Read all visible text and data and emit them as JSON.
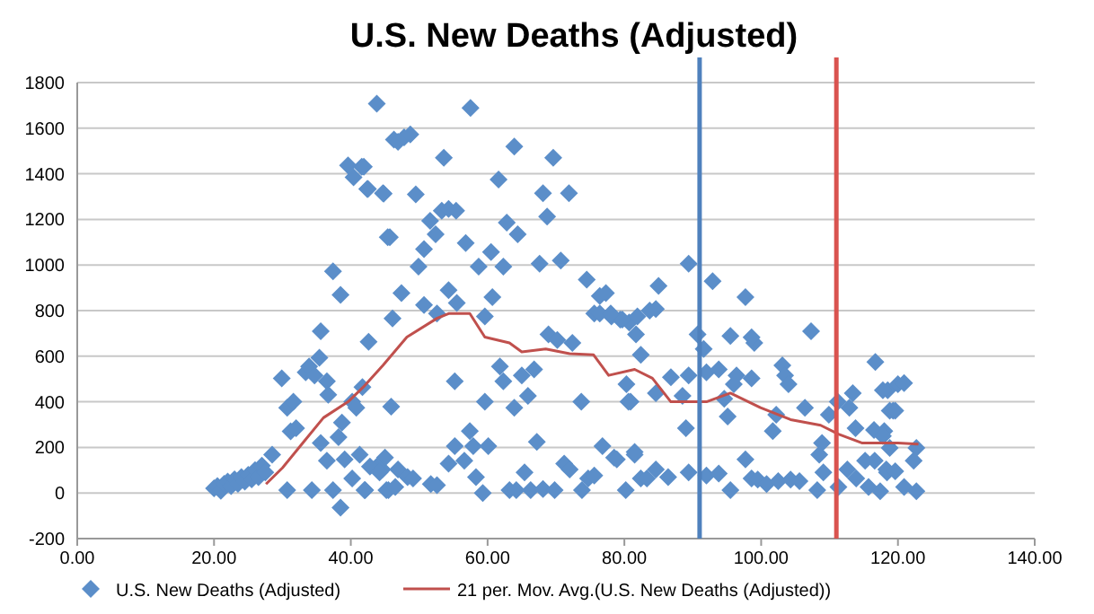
{
  "chart_data": {
    "type": "scatter",
    "title": "U.S. New Deaths (Adjusted)",
    "xlim": [
      0,
      140
    ],
    "ylim": [
      -200,
      1800
    ],
    "xticks": [
      {
        "value": 0,
        "label": "0.00"
      },
      {
        "value": 20,
        "label": "20.00"
      },
      {
        "value": 40,
        "label": "40.00"
      },
      {
        "value": 60,
        "label": "60.00"
      },
      {
        "value": 80,
        "label": "80.00"
      },
      {
        "value": 100,
        "label": "100.00"
      },
      {
        "value": 120,
        "label": "120.00"
      },
      {
        "value": 140,
        "label": "140.00"
      }
    ],
    "yticks": [
      -200,
      0,
      200,
      400,
      600,
      800,
      1000,
      1200,
      1400,
      1600,
      1800
    ],
    "grid": "y",
    "legend": "bottom",
    "series": [
      {
        "name": "U.S. New Deaths (Adjusted)",
        "marker": "diamond",
        "color": "#5b8ec9",
        "x": [
          20.0,
          20.5,
          21,
          21.5,
          22,
          22.5,
          23,
          23.5,
          24,
          24.5,
          25,
          25.5,
          26,
          26.5,
          27,
          27.5,
          28.5,
          29.9,
          30.7,
          31.6,
          31.2,
          32,
          33.4,
          33.9,
          34.7,
          35.4,
          35.6,
          36.5,
          36.7,
          37.4,
          38.5,
          38.5,
          37.4,
          34.3,
          30.7,
          36.5,
          35.6,
          38.2,
          38.7,
          39.1,
          39.6,
          40.4,
          41.6,
          42.4,
          40.2,
          40.8,
          41.7,
          42.6,
          42.1,
          41.3,
          40.2,
          43.8,
          44.8,
          45.7,
          46.3,
          46.1,
          45.9,
          45,
          44.6,
          43.8,
          45.5,
          41.9,
          42.5,
          44.7,
          46.9,
          47.8,
          48.7,
          53.6,
          49.5,
          45.4,
          51.6,
          50.7,
          52.4,
          53.3,
          54.3,
          55.4,
          56.8,
          57.5,
          49.9,
          47.4,
          50.7,
          52.6,
          54.3,
          55.5,
          55.2,
          57.4,
          58.7,
          59.6,
          60.5,
          60.7,
          62.3,
          62.8,
          61.6,
          63.9,
          64.4,
          61.8,
          62.3,
          59.6,
          63.9,
          65,
          65.9,
          66.8,
          67.6,
          68.1,
          68.7,
          69.6,
          71.9,
          70.7,
          68.9,
          70.2,
          72.4,
          73.7,
          74.5,
          76.4,
          77.3,
          75.6,
          76.4,
          78.1,
          79.4,
          80.7,
          81.7,
          82.4,
          80.3,
          80.9,
          76.8,
          78.5,
          81.5,
          82.4,
          42,
          42.8,
          44.2,
          45.2,
          46.5,
          46.9,
          48.3,
          49.1,
          51.7,
          52.6,
          54.3,
          55.2,
          56.6,
          57.9,
          58.3,
          59.3,
          60.1,
          63.2,
          64.2,
          65.4,
          66.3,
          67.2,
          68.1,
          69.8,
          71.2,
          72,
          73.8,
          74.7,
          75.6,
          89.4,
          92.9,
          97.7,
          85,
          83.7,
          84.6,
          81.9,
          79.7,
          78,
          90.7,
          91.6,
          95.5,
          99,
          98.6,
          107.3,
          103.1,
          103.5,
          104,
          116.7,
          89.4,
          92,
          93.8,
          86.8,
          84.6,
          80.6,
          88.5,
          96.4,
          96,
          98.6,
          94.6,
          95.1,
          106.4,
          89,
          109.9,
          111.2,
          113.4,
          112.9,
          113.8,
          118.5,
          119.3,
          118,
          101.7,
          102.2,
          108.9,
          108.5,
          78.9,
          81.5,
          80.2,
          83.3,
          84.6,
          86.4,
          89.4,
          92,
          93.8,
          95.5,
          97.7,
          98.6,
          99.5,
          100.8,
          102.5,
          104.3,
          105.6,
          108.2,
          109.1,
          111.3,
          112.6,
          113.9,
          115.7,
          116.6,
          118.4,
          117.8,
          120,
          120.9,
          118.8,
          119.6,
          116.5,
          117.8,
          118.8,
          122.7,
          122.3,
          118.3,
          119.6,
          120.9,
          122.7,
          117.4,
          115.2
        ],
        "values": [
          20,
          30,
          10,
          40,
          50,
          30,
          60,
          40,
          70,
          50,
          80,
          60,
          100,
          70,
          120,
          90,
          168,
          503,
          374,
          400,
          270,
          284,
          529,
          555,
          516,
          593,
          709,
          490,
          431,
          972,
          869,
          -64,
          13,
          13,
          13,
          142,
          219,
          245,
          309,
          147,
          1437,
          1385,
          1431,
          1333,
          400,
          374,
          464,
          663,
          13,
          168,
          64,
          1707,
          1313,
          1122,
          1550,
          766,
          379,
          155,
          103,
          116,
          13,
          1431,
          1333,
          1315,
          1540,
          1560,
          1573,
          1470,
          1310,
          1122,
          1194,
          1070,
          1135,
          1238,
          1246,
          1238,
          1096,
          1689,
          993,
          877,
          825,
          787,
          890,
          833,
          490,
          271,
          993,
          774,
          1057,
          859,
          993,
          1186,
          1375,
          1519,
          1135,
          555,
          490,
          400,
          374,
          516,
          426,
          542,
          1006,
          1315,
          1212,
          1470,
          1315,
          1019,
          696,
          671,
          658,
          400,
          936,
          864,
          877,
          787,
          787,
          774,
          761,
          748,
          696,
          606,
          477,
          400,
          206,
          155,
          180,
          64,
          13,
          116,
          90,
          13,
          26,
          103,
          70,
          64,
          39,
          34,
          129,
          206,
          142,
          206,
          70,
          0,
          206,
          13,
          13,
          90,
          13,
          224,
          18,
          13,
          129,
          103,
          13,
          64,
          77,
          1006,
          929,
          859,
          908,
          800,
          807,
          774,
          761,
          787,
          696,
          632,
          689,
          658,
          683,
          709,
          560,
          516,
          477,
          575,
          516,
          529,
          542,
          508,
          438,
          400,
          426,
          516,
          477,
          503,
          413,
          335,
          374,
          284,
          343,
          400,
          438,
          374,
          284,
          451,
          361,
          271,
          271,
          343,
          219,
          168,
          147,
          168,
          13,
          64,
          103,
          70,
          90,
          77,
          85,
          13,
          147,
          64,
          59,
          39,
          52,
          59,
          52,
          13,
          90,
          26,
          103,
          64,
          26,
          142,
          90,
          451,
          477,
          482,
          361,
          361,
          276,
          250,
          198,
          198,
          142,
          103,
          95,
          26,
          8,
          8,
          142
        ]
      },
      {
        "name": "21 per. Mov. Avg.(U.S. New Deaths (Adjusted))",
        "type": "line",
        "color": "#c0504d",
        "x": [
          27.6,
          30,
          33,
          36,
          39.6,
          42,
          44.7,
          48.2,
          52.6,
          54.3,
          57.4,
          59.6,
          63.2,
          65,
          68.5,
          72,
          75.5,
          77.7,
          81.5,
          84.1,
          86.8,
          92,
          95.5,
          99.9,
          104.3,
          108.7,
          111.3,
          114.8,
          120,
          123
        ],
        "values": [
          39,
          110,
          220,
          330,
          400,
          470,
          560,
          684,
          766,
          787,
          787,
          684,
          658,
          619,
          632,
          611,
          606,
          516,
          542,
          503,
          400,
          400,
          438,
          374,
          322,
          297,
          258,
          219,
          219,
          214
        ]
      }
    ],
    "ref_lines": [
      {
        "axis": "x",
        "value": 91,
        "color": "#4f81bd"
      },
      {
        "axis": "x",
        "value": 111,
        "color": "#d9534f"
      }
    ]
  }
}
